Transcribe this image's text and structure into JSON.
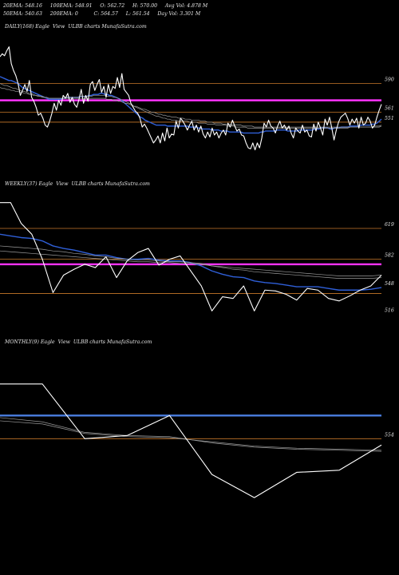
{
  "header": {
    "row1": [
      {
        "label": "20EMA",
        "value": "548.16"
      },
      {
        "label": "100EMA",
        "value": "548.91"
      },
      {
        "label": "O",
        "value": "562.72"
      },
      {
        "label": "H",
        "value": "570.00"
      },
      {
        "label": "Avg Vol",
        "value": "4.878 M"
      }
    ],
    "row2": [
      {
        "label": "50EMA",
        "value": "540.63"
      },
      {
        "label": "200EMA",
        "value": "0"
      },
      {
        "label": "C",
        "value": "564.57"
      },
      {
        "label": "L",
        "value": "561.54"
      },
      {
        "label": "Day Vol",
        "value": "3.301 M"
      }
    ],
    "row1_text": "20EMA: 548.16     100EMA: 548.91     O: 562.72     H: 570.00     Avg Vol: 4.878 M",
    "row2_text": "50EMA: 540.63     200EMA: 0          C: 564.57     L: 561.54     Day Vol: 3.301 M"
  },
  "colors": {
    "background": "#000000",
    "price_line": "#ffffff",
    "ema_blue": "#2f5fd8",
    "ema_grey": "#9a9a9a",
    "level_orange": "#c8792a",
    "level_magenta": "#ff33ff",
    "level_blue": "#4a7ee0"
  },
  "chart_data": [
    {
      "type": "line",
      "panel_label": "DAILY(168) Eagle  View  ULBB charts MunafaSutra.com",
      "y_ticks": [
        {
          "label": "590",
          "value": 590
        },
        {
          "label": "561",
          "value": 561
        },
        {
          "label": "551",
          "value": 551
        }
      ],
      "y_range": [
        505,
        642
      ],
      "levels": [
        {
          "value": 590,
          "color": "#c8792a"
        },
        {
          "value": 573,
          "color": "#ff33ff"
        },
        {
          "value": 561,
          "color": "#c8792a"
        },
        {
          "value": 551,
          "color": "#c8792a"
        }
      ],
      "series": [
        {
          "role": "price",
          "color": "#ffffff",
          "values": [
            617,
            620,
            618,
            623,
            627,
            610,
            603,
            598,
            590,
            578,
            583,
            589,
            582,
            593,
            576,
            572,
            566,
            558,
            560,
            555,
            548,
            546,
            552,
            560,
            570,
            563,
            573,
            568,
            578,
            575,
            580,
            571,
            576,
            569,
            566,
            574,
            584,
            570,
            578,
            572,
            589,
            592,
            583,
            589,
            594,
            581,
            587,
            576,
            589,
            580,
            587,
            585,
            596,
            586,
            600,
            584,
            581,
            578,
            570,
            566,
            562,
            560,
            555,
            546,
            549,
            545,
            540,
            535,
            530,
            533,
            537,
            530,
            540,
            532,
            545,
            535,
            539,
            538,
            552,
            545,
            555,
            552,
            548,
            543,
            548,
            552,
            543,
            548,
            541,
            547,
            539,
            535,
            541,
            536,
            545,
            538,
            541,
            535,
            540,
            543,
            538,
            550,
            546,
            553,
            547,
            542,
            544,
            538,
            537,
            530,
            525,
            524,
            530,
            523,
            530,
            525,
            535,
            550,
            546,
            553,
            547,
            545,
            540,
            547,
            552,
            545,
            548,
            543,
            547,
            540,
            535,
            545,
            542,
            540,
            548,
            541,
            543,
            537,
            536,
            549,
            542,
            551,
            545,
            538,
            554,
            548,
            556,
            545,
            533,
            543,
            551,
            556,
            558,
            560,
            555,
            548,
            554,
            550,
            555,
            545,
            556,
            548,
            550,
            556,
            552,
            545,
            548,
            556,
            563,
            569
          ]
        },
        {
          "role": "ema-blue",
          "color": "#2f5fd8",
          "values": [
            597,
            596,
            595,
            594,
            593,
            593,
            592,
            591,
            590,
            588,
            586,
            585,
            584,
            583,
            582,
            581,
            580,
            579,
            578,
            577,
            576,
            575,
            574,
            574,
            574,
            574,
            574,
            574,
            575,
            575,
            576,
            576,
            576,
            576,
            576,
            576,
            577,
            577,
            577,
            577,
            578,
            578,
            579,
            579,
            579,
            580,
            580,
            579,
            579,
            578,
            578,
            577,
            576,
            575,
            574,
            572,
            570,
            568,
            566,
            564,
            562,
            560,
            558,
            556,
            555,
            553,
            552,
            551,
            550,
            549,
            548,
            548,
            548,
            548,
            548,
            547,
            547,
            547,
            547,
            547,
            547,
            547,
            547,
            547,
            547,
            546,
            546,
            546,
            546,
            545,
            545,
            544,
            544,
            544,
            544,
            543,
            543,
            543,
            543,
            542,
            542,
            542,
            542,
            541,
            541,
            541,
            541,
            541,
            541,
            540,
            540,
            540,
            540,
            540,
            540,
            540,
            540,
            541,
            541,
            542,
            542,
            542,
            542,
            542,
            543,
            543,
            543,
            543,
            543,
            542,
            542,
            542,
            542,
            542,
            543,
            543,
            543,
            543,
            543,
            543,
            543,
            544,
            544,
            544,
            545,
            545,
            545,
            545,
            544,
            544,
            545,
            545,
            545,
            546,
            546,
            546,
            546,
            547,
            547,
            547,
            547,
            547,
            548,
            548,
            548,
            548,
            548,
            549,
            549,
            550,
            552,
            554
          ]
        },
        {
          "role": "ema-grey-1",
          "color": "#9a9a9a",
          "values": [
            590,
            589,
            588,
            588,
            587,
            586,
            585,
            585,
            584,
            583,
            582,
            582,
            581,
            580,
            580,
            579,
            578,
            578,
            577,
            577,
            576,
            576,
            575,
            575,
            575,
            575,
            575,
            575,
            575,
            575,
            576,
            576,
            576,
            576,
            576,
            576,
            577,
            577,
            577,
            577,
            577,
            577,
            578,
            578,
            578,
            578,
            578,
            578,
            577,
            577,
            577,
            576,
            576,
            575,
            574,
            573,
            572,
            571,
            570,
            569,
            567,
            566,
            565,
            564,
            563,
            562,
            561,
            560,
            559,
            558,
            557,
            557,
            556,
            555,
            555,
            554,
            554,
            553,
            553,
            553,
            552,
            552,
            552,
            552,
            552,
            551,
            551,
            551,
            551,
            550,
            550,
            550,
            550,
            549,
            549,
            549,
            549,
            548,
            548,
            548,
            548,
            548,
            547,
            547,
            547,
            547,
            546,
            546,
            546,
            546,
            546,
            545,
            545,
            545,
            545,
            545,
            545,
            545,
            545,
            545,
            545,
            545,
            545,
            545,
            545,
            545,
            545,
            545,
            545,
            545,
            545,
            545,
            545,
            545,
            545,
            545,
            545,
            545,
            545,
            545,
            545,
            545,
            545,
            545,
            545,
            545,
            545,
            545,
            545,
            545,
            545,
            545,
            545,
            545,
            545,
            545,
            545,
            546,
            546,
            546,
            546,
            546,
            546,
            546,
            546,
            546,
            546,
            546,
            547,
            547,
            547,
            548
          ]
        },
        {
          "role": "ema-grey-2",
          "color": "#9a9a9a",
          "values": [
            586,
            585,
            585,
            584,
            584,
            583,
            583,
            582,
            582,
            581,
            581,
            580,
            580,
            579,
            579,
            578,
            578,
            577,
            577,
            576,
            576,
            576,
            575,
            575,
            575,
            575,
            575,
            575,
            575,
            575,
            575,
            575,
            575,
            575,
            575,
            575,
            575,
            575,
            575,
            575,
            575,
            575,
            575,
            575,
            575,
            575,
            575,
            575,
            574,
            574,
            574,
            573,
            573,
            572,
            572,
            571,
            570,
            570,
            569,
            568,
            567,
            567,
            566,
            565,
            564,
            564,
            563,
            562,
            561,
            561,
            560,
            559,
            559,
            558,
            558,
            557,
            557,
            556,
            556,
            556,
            555,
            555,
            555,
            554,
            554,
            554,
            553,
            553,
            553,
            553,
            552,
            552,
            552,
            551,
            551,
            551,
            550,
            550,
            550,
            550,
            549,
            549,
            549,
            549,
            548,
            548,
            548,
            548,
            548,
            547,
            547,
            547,
            547,
            547,
            546,
            546,
            546,
            546,
            546,
            546,
            546,
            546,
            546,
            546,
            546,
            546,
            546,
            546,
            546,
            546,
            546,
            546,
            546,
            546,
            546,
            546,
            546,
            546,
            546,
            546,
            546,
            546,
            546,
            546,
            546,
            546,
            546,
            546,
            546,
            546,
            546,
            546,
            546,
            546,
            546,
            546,
            546,
            546,
            546,
            546,
            546,
            546,
            546,
            546,
            546,
            546,
            546,
            546,
            546,
            546,
            546,
            547
          ]
        }
      ]
    },
    {
      "type": "line",
      "panel_label": "WEEKLY(37) Eagle  View  ULBB charts MunafaSutra.com",
      "y_ticks": [
        {
          "label": "619",
          "value": 619
        },
        {
          "label": "582",
          "value": 582
        },
        {
          "label": "548",
          "value": 548
        },
        {
          "label": "516",
          "value": 516
        }
      ],
      "y_range": [
        505,
        665
      ],
      "levels": [
        {
          "value": 619,
          "color": "#c8792a"
        },
        {
          "value": 582,
          "color": "#c8792a"
        },
        {
          "value": 576,
          "color": "#ff33ff"
        },
        {
          "value": 541,
          "color": "#c8792a"
        }
      ],
      "series": [
        {
          "role": "price",
          "color": "#ffffff",
          "values": [
            650,
            650,
            625,
            612,
            582,
            542,
            563,
            570,
            576,
            572,
            585,
            560,
            580,
            590,
            595,
            575,
            582,
            586,
            568,
            550,
            520,
            537,
            535,
            550,
            520,
            545,
            544,
            540,
            533,
            547,
            545,
            535,
            532,
            538,
            545,
            550,
            563
          ]
        },
        {
          "role": "ema-blue",
          "color": "#2f5fd8",
          "values": [
            612,
            610,
            608,
            607,
            604,
            598,
            595,
            593,
            590,
            587,
            587,
            584,
            582,
            582,
            583,
            581,
            580,
            580,
            578,
            574,
            568,
            564,
            561,
            560,
            556,
            554,
            553,
            551,
            549,
            549,
            549,
            547,
            545,
            545,
            545,
            546,
            548
          ]
        },
        {
          "role": "ema-grey-1",
          "color": "#9a9a9a",
          "values": [
            598,
            597,
            596,
            595,
            594,
            592,
            591,
            589,
            588,
            586,
            585,
            583,
            582,
            581,
            581,
            580,
            579,
            579,
            578,
            577,
            574,
            572,
            570,
            569,
            567,
            566,
            565,
            564,
            563,
            562,
            561,
            560,
            559,
            559,
            559,
            559,
            560
          ]
        },
        {
          "role": "ema-grey-2",
          "color": "#9a9a9a",
          "values": [
            592,
            591,
            590,
            589,
            588,
            587,
            586,
            585,
            584,
            583,
            582,
            581,
            580,
            579,
            579,
            578,
            578,
            577,
            577,
            576,
            574,
            573,
            572,
            571,
            570,
            569,
            568,
            567,
            566,
            565,
            564,
            563,
            562,
            562,
            562,
            562,
            563
          ]
        }
      ]
    },
    {
      "type": "line",
      "panel_label": "MONTHLY(9) Eagle  View  ULBB charts MunafaSutra.com",
      "y_ticks": [
        {
          "label": "554",
          "value": 554
        }
      ],
      "y_range": [
        470,
        640
      ],
      "levels": [
        {
          "value": 576,
          "color": "#4a7ee0"
        },
        {
          "value": 554,
          "color": "#c8792a"
        }
      ],
      "series": [
        {
          "role": "price",
          "color": "#ffffff",
          "values": [
            606,
            606,
            554,
            557,
            576,
            520,
            498,
            522,
            524,
            548
          ]
        },
        {
          "role": "ema-grey-1",
          "color": "#9a9a9a",
          "values": [
            574,
            570,
            560,
            557,
            556,
            550,
            546,
            544,
            543,
            542
          ]
        },
        {
          "role": "ema-grey-2",
          "color": "#9a9a9a",
          "values": [
            571,
            568,
            559,
            556,
            555,
            551,
            547,
            545,
            544,
            543
          ]
        }
      ]
    }
  ]
}
